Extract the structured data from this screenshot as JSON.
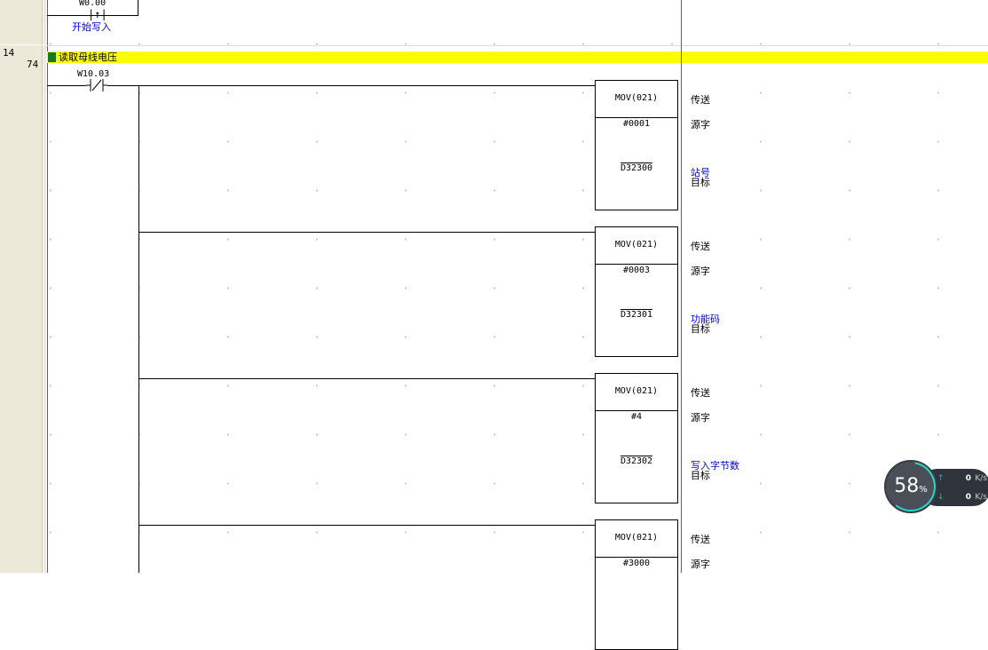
{
  "gutter": {
    "rung": "14",
    "step": "74"
  },
  "prev_rung": {
    "contact": "W0.00",
    "comment": "开始写入"
  },
  "rung": {
    "comment": "读取母线电压",
    "contact": "W10.03",
    "instructions": [
      {
        "op": "MOV(021)",
        "src": "#0001",
        "dst": "D32300",
        "op_desc": "传送",
        "src_desc": "源字",
        "dst_comment": "站号",
        "dst_desc": "目标"
      },
      {
        "op": "MOV(021)",
        "src": "#0003",
        "dst": "D32301",
        "op_desc": "传送",
        "src_desc": "源字",
        "dst_comment": "功能码",
        "dst_desc": "目标"
      },
      {
        "op": "MOV(021)",
        "src": "#4",
        "dst": "D32302",
        "op_desc": "传送",
        "src_desc": "源字",
        "dst_comment": "写入字节数",
        "dst_desc": "目标"
      },
      {
        "op": "MOV(021)",
        "src": "#3000",
        "op_desc": "传送",
        "src_desc": "源字"
      }
    ]
  },
  "widget": {
    "percent": "58",
    "percent_sign": "%",
    "upload": "0",
    "download": "0",
    "unit": "K/s",
    "colors": {
      "ring_start": "#2ad4c8",
      "ring_end": "#e8e040",
      "up": "#3aa0ff",
      "down": "#3ac060"
    }
  }
}
